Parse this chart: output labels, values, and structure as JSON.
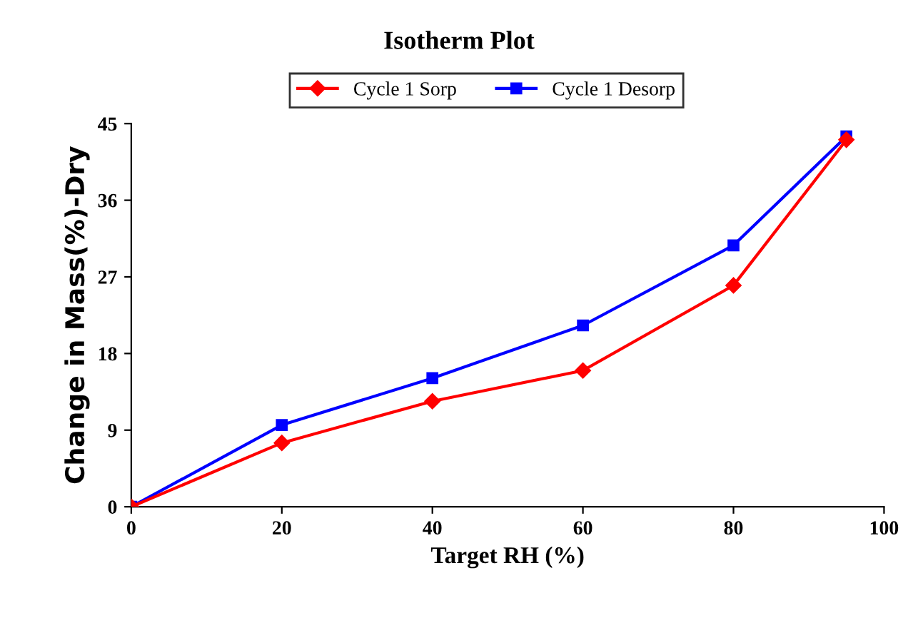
{
  "chart_data": {
    "type": "line",
    "title": "Isotherm Plot",
    "xlabel": "Target RH (%)",
    "ylabel": "Change in Mass(%)-Dry",
    "x": [
      0,
      20,
      40,
      60,
      80,
      95
    ],
    "series": [
      {
        "name": "Cycle 1 Sorp",
        "color": "#ff0000",
        "marker": "diamond",
        "values": [
          0,
          7.5,
          12.4,
          16.0,
          26.0,
          43.1
        ]
      },
      {
        "name": "Cycle 1 Desorp",
        "color": "#0000ff",
        "marker": "square",
        "values": [
          0,
          9.6,
          15.1,
          21.3,
          30.7,
          43.5
        ]
      }
    ],
    "xlim": [
      0,
      100
    ],
    "xticks": [
      0,
      20,
      40,
      60,
      80,
      100
    ],
    "ylim": [
      0,
      45
    ],
    "yticks": [
      0,
      9,
      18,
      27,
      36,
      45
    ],
    "grid": false,
    "legend": "top"
  }
}
